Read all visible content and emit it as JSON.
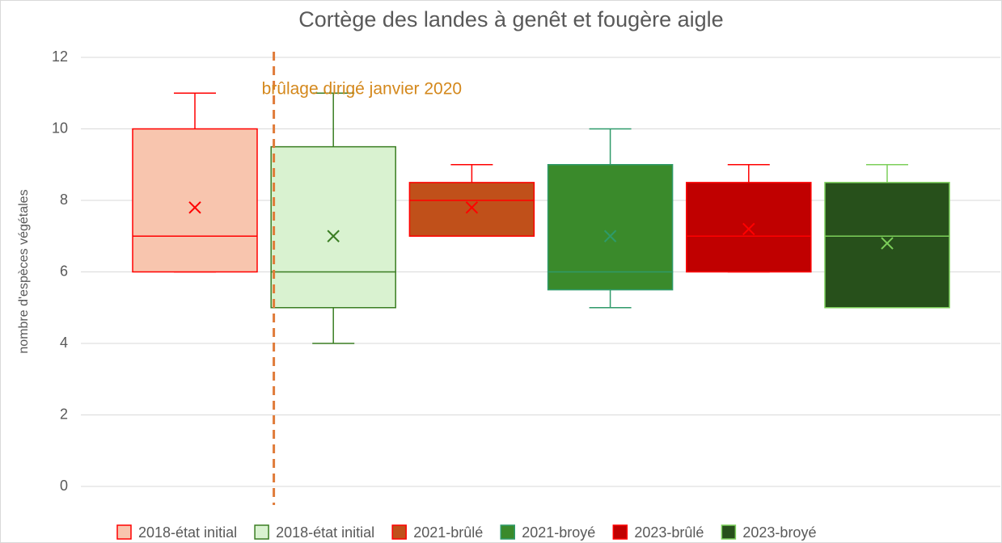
{
  "chart_data": {
    "type": "box",
    "title": "Cortège des landes à genêt et fougère aigle",
    "y_label": "nombre d'espèces végétales",
    "ylim": [
      0,
      12
    ],
    "yticks": [
      0,
      2,
      4,
      6,
      8,
      10,
      12
    ],
    "grid": true,
    "legend": "bottom",
    "annotation": {
      "text": "brûlage dirigé janvier 2020",
      "color": "#e07b39",
      "text_color": "#d4881c"
    },
    "series": [
      {
        "name": "2018-état initial",
        "color": "#f8c5ae",
        "stroke": "#ff0000",
        "min": 6,
        "q1": 6,
        "median": 7,
        "q3": 10,
        "max": 11,
        "mean": 7.8
      },
      {
        "name": "2018-état initial",
        "color": "#d9f2d0",
        "stroke": "#3a7d22",
        "min": 4,
        "q1": 5,
        "median": 6,
        "q3": 9.5,
        "max": 11,
        "mean": 7
      },
      {
        "name": "2021-brûlé",
        "color": "#c0501a",
        "stroke": "#ff0000",
        "min": 7,
        "q1": 7,
        "median": 8,
        "q3": 8.5,
        "max": 9,
        "mean": 7.8
      },
      {
        "name": "2021-broyé",
        "color": "#3a8a2b",
        "stroke": "#2e9a6a",
        "min": 5,
        "q1": 5.5,
        "median": 6,
        "q3": 9,
        "max": 10,
        "mean": 7
      },
      {
        "name": "2023-brûlé",
        "color": "#c00000",
        "stroke": "#ff0000",
        "min": 6,
        "q1": 6,
        "median": 7,
        "q3": 8.5,
        "max": 9,
        "mean": 7.2
      },
      {
        "name": "2023-broyé",
        "color": "#27501b",
        "stroke": "#7ccf5a",
        "min": 5,
        "q1": 5,
        "median": 7,
        "q3": 8.5,
        "max": 9,
        "mean": 6.8
      }
    ]
  }
}
